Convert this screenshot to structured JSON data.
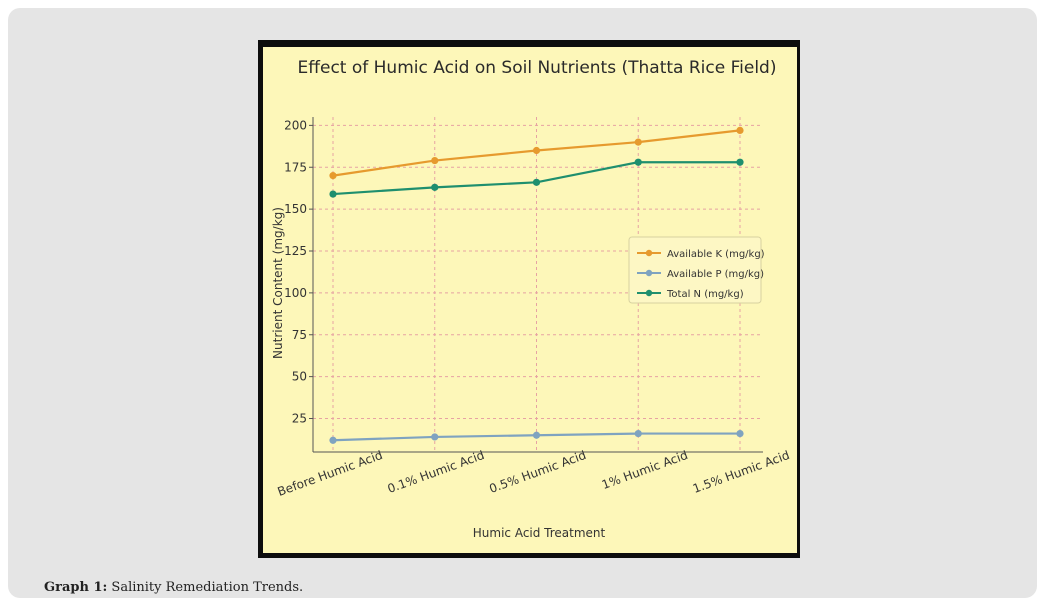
{
  "caption": {
    "label": "Graph 1:",
    "text": " Salinity Remediation Trends."
  },
  "chart_data": {
    "type": "line",
    "title": "Effect of Humic Acid on Soil Nutrients (Thatta Rice Field)",
    "xlabel": "Humic Acid Treatment",
    "ylabel": "Nutrient Content (mg/kg)",
    "categories": [
      "Before Humic Acid",
      "0.1% Humic Acid",
      "0.5% Humic Acid",
      "1% Humic Acid",
      "1.5% Humic Acid"
    ],
    "ylim": [
      5,
      205
    ],
    "yticks": [
      25,
      50,
      75,
      100,
      125,
      150,
      175,
      200
    ],
    "grid": true,
    "legend_position": "center-right",
    "series": [
      {
        "name": "Available K (mg/kg)",
        "color": "#e69a2e",
        "values": [
          170,
          179,
          185,
          190,
          197
        ]
      },
      {
        "name": "Available P (mg/kg)",
        "color": "#7fa3c0",
        "values": [
          12,
          14,
          15,
          16,
          16
        ]
      },
      {
        "name": "Total N (mg/kg)",
        "color": "#1f8f6e",
        "values": [
          159,
          163,
          166,
          178,
          178
        ]
      }
    ]
  }
}
